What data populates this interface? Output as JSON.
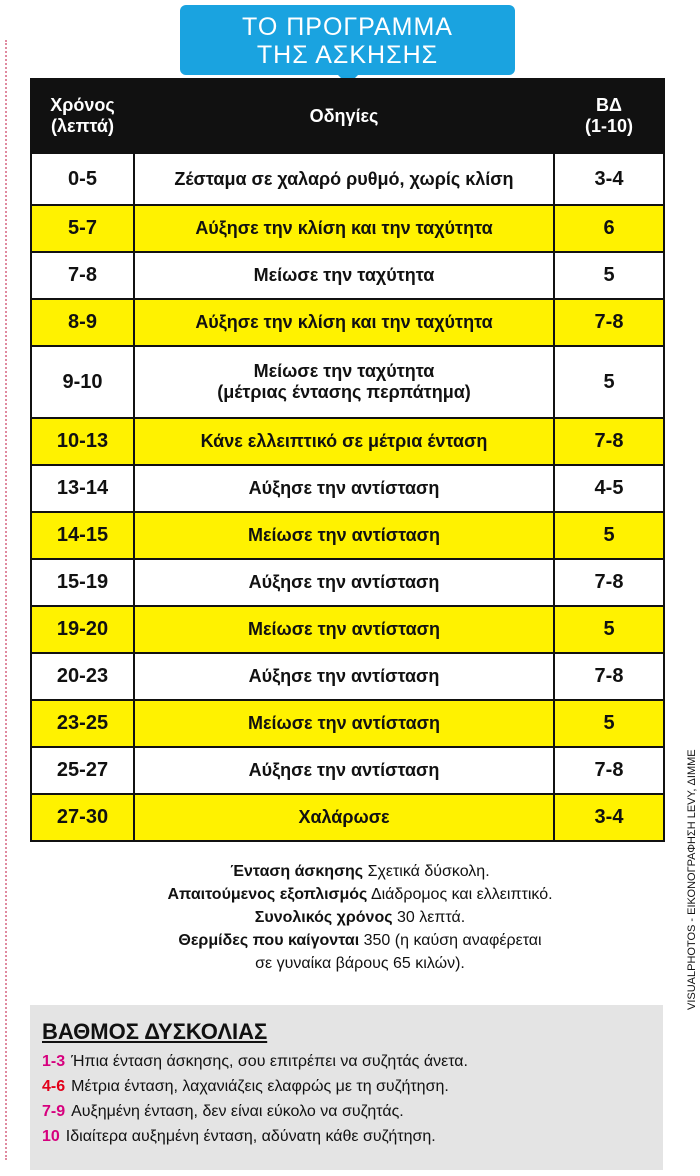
{
  "header": {
    "title": [
      "ΤΟ ΠΡΟΓΡΑΜΜΑ",
      "ΤΗΣ ΑΣΚΗΣΗΣ"
    ]
  },
  "table": {
    "columns": [
      [
        "Χρόνος",
        "(λεπτά)"
      ],
      [
        "Οδηγίες"
      ],
      [
        "ΒΔ",
        "(1-10)"
      ]
    ],
    "rows": [
      [
        "0-5",
        "Ζέσταμα σε χαλαρό ρυθμό, χωρίς κλίση",
        "3-4"
      ],
      [
        "5-7",
        "Αύξησε την κλίση και την ταχύτητα",
        "6"
      ],
      [
        "7-8",
        "Μείωσε την ταχύτητα",
        "5"
      ],
      [
        "8-9",
        "Αύξησε την κλίση και την ταχύτητα",
        "7-8"
      ],
      [
        "9-10",
        [
          "Μείωσε την ταχύτητα",
          "(μέτριας έντασης περπάτημα)"
        ],
        "5"
      ],
      [
        "10-13",
        "Κάνε ελλειπτικό σε μέτρια ένταση",
        "7-8"
      ],
      [
        "13-14",
        "Αύξησε την αντίσταση",
        "4-5"
      ],
      [
        "14-15",
        "Μείωσε την αντίσταση",
        "5"
      ],
      [
        "15-19",
        "Αύξησε την αντίσταση",
        "7-8"
      ],
      [
        "19-20",
        "Μείωσε την αντίσταση",
        "5"
      ],
      [
        "20-23",
        "Αύξησε την αντίσταση",
        "7-8"
      ],
      [
        "23-25",
        "Μείωσε την αντίσταση",
        "5"
      ],
      [
        "25-27",
        "Αύξησε την αντίσταση",
        "7-8"
      ],
      [
        "27-30",
        "Χαλάρωσε",
        "3-4"
      ]
    ]
  },
  "notes": [
    {
      "label": "Ένταση άσκησης",
      "text": [
        "Σχετικά δύσκολη."
      ]
    },
    {
      "label": "Απαιτούμενος εξοπλισμός",
      "text": [
        "Διάδρομος και ελλειπτικό."
      ]
    },
    {
      "label": "Συνολικός χρόνος",
      "text": [
        "30 λεπτά."
      ]
    },
    {
      "label": "Θερμίδες που καίγονται",
      "text": [
        "350 (η καύση αναφέρεται",
        "σε γυναίκα βάρους 65 κιλών)."
      ]
    }
  ],
  "credit": "VISUALPHOTOS - ΕΙΚΟΝΟΓΡΑΦΗΣΗ LEVY, ΔΙΜΜΕ",
  "legend": {
    "title": "ΒΑΘΜΟΣ ΔΥΣΚΟΛΙΑΣ",
    "items": [
      {
        "range": "1-3",
        "text": "Ήπια ένταση άσκησης, σου επιτρέπει να συζητάς άνετα."
      },
      {
        "range": "4-6",
        "text": "Μέτρια ένταση, λαχανιάζεις ελαφρώς με τη συζήτηση."
      },
      {
        "range": "7-9",
        "text": "Αυξημένη ένταση, δεν είναι εύκολο να συζητάς."
      },
      {
        "range": "10",
        "text": "Ιδιαίτερα αυξημένη ένταση, αδύνατη κάθε συζήτηση."
      }
    ]
  }
}
